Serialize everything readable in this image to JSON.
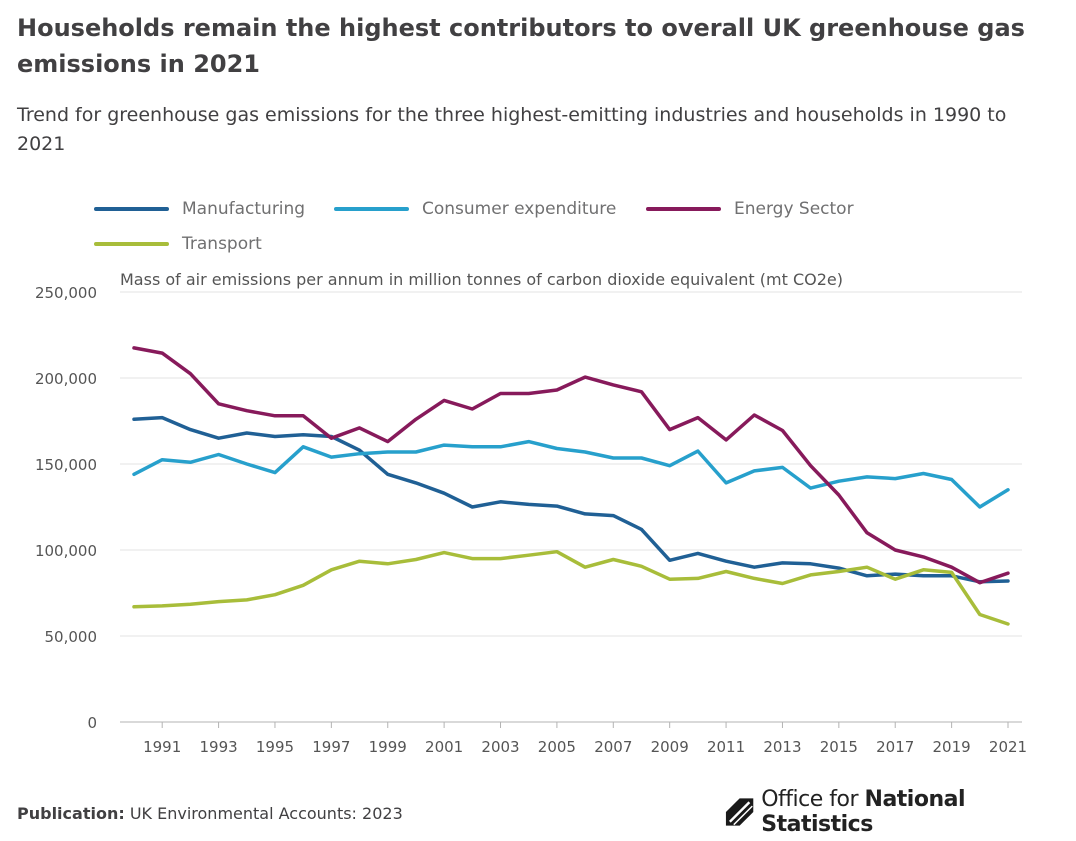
{
  "header": {
    "title": "Households remain the highest contributors to overall UK greenhouse gas emissions in 2021",
    "subtitle": "Trend for greenhouse gas emissions for the three highest-emitting industries and households in 1990 to 2021"
  },
  "footer": {
    "publication_label": "Publication:",
    "publication_value": "UK Environmental Accounts: 2023",
    "logo_text_light": "Office for",
    "logo_text_bold": "National Statistics"
  },
  "chart_data": {
    "type": "line",
    "ylabel": "Mass of air emissions per annum in million tonnes of carbon dioxide equivalent (mt CO2e)",
    "ylim": [
      0,
      250000
    ],
    "yticks": [
      "0",
      "50,000",
      "100,000",
      "150,000",
      "200,000",
      "250,000"
    ],
    "ytick_values": [
      0,
      50000,
      100000,
      150000,
      200000,
      250000
    ],
    "x": [
      1990,
      1991,
      1992,
      1993,
      1994,
      1995,
      1996,
      1997,
      1998,
      1999,
      2000,
      2001,
      2002,
      2003,
      2004,
      2005,
      2006,
      2007,
      2008,
      2009,
      2010,
      2011,
      2012,
      2013,
      2014,
      2015,
      2016,
      2017,
      2018,
      2019,
      2020,
      2021
    ],
    "xticks": [
      "1991",
      "1993",
      "1995",
      "1997",
      "1999",
      "2001",
      "2003",
      "2005",
      "2007",
      "2009",
      "2011",
      "2013",
      "2015",
      "2017",
      "2019",
      "2021"
    ],
    "xtick_values": [
      1991,
      1993,
      1995,
      1997,
      1999,
      2001,
      2003,
      2005,
      2007,
      2009,
      2011,
      2013,
      2015,
      2017,
      2019,
      2021
    ],
    "grid": "horizontal",
    "legend": "top-left",
    "series": [
      {
        "name": "Manufacturing",
        "color": "#206095",
        "values": [
          176000,
          177000,
          170000,
          165000,
          168000,
          166000,
          167000,
          166000,
          158000,
          144000,
          139000,
          133000,
          125000,
          128000,
          126500,
          125500,
          121000,
          120000,
          112000,
          94000,
          98000,
          93500,
          90000,
          92500,
          92000,
          89500,
          85000,
          86000,
          85000,
          85000,
          81500,
          82000
        ]
      },
      {
        "name": "Consumer expenditure",
        "color": "#27a0cc",
        "values": [
          144000,
          152500,
          151000,
          155500,
          150000,
          145000,
          160000,
          154000,
          156000,
          157000,
          157000,
          161000,
          160000,
          160000,
          163000,
          159000,
          157000,
          153500,
          153500,
          149000,
          157500,
          139000,
          146000,
          148000,
          136000,
          140000,
          142500,
          141500,
          144500,
          141000,
          125000,
          135000
        ]
      },
      {
        "name": "Energy Sector",
        "color": "#871a5b",
        "values": [
          217500,
          214500,
          202500,
          185000,
          181000,
          178000,
          178000,
          165000,
          171000,
          163000,
          176000,
          187000,
          182000,
          191000,
          191000,
          193000,
          200500,
          196000,
          192000,
          170000,
          177000,
          164000,
          178500,
          169500,
          149000,
          132000,
          110000,
          100000,
          96000,
          90000,
          81000,
          86500
        ]
      },
      {
        "name": "Transport",
        "color": "#a8bd3a",
        "values": [
          67000,
          67500,
          68500,
          70000,
          71000,
          74000,
          79500,
          88500,
          93500,
          92000,
          94500,
          98500,
          95000,
          95000,
          97000,
          99000,
          90000,
          94500,
          90500,
          83000,
          83500,
          87500,
          83500,
          80500,
          85500,
          87500,
          90000,
          83000,
          88500,
          87000,
          62500,
          57000
        ]
      }
    ]
  }
}
